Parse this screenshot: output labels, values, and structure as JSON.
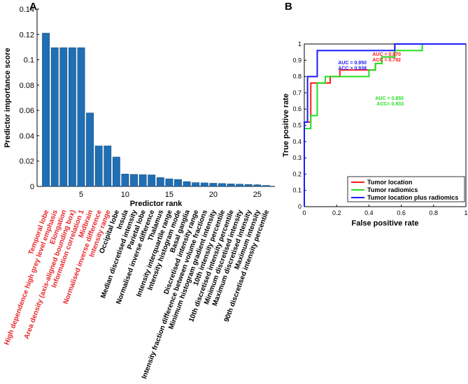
{
  "chart_data": [
    {
      "panel": "A",
      "type": "bar",
      "xlabel": "Predictor rank",
      "ylabel": "Predictor importance score",
      "ylim": [
        0,
        0.14
      ],
      "xlim": [
        0,
        27
      ],
      "yticks": [
        "0",
        "0.02",
        "0.04",
        "0.06",
        "0.08",
        "0.1",
        "0.12",
        "0.14"
      ],
      "xticks": [
        "5",
        "10",
        "15",
        "20",
        "25"
      ],
      "bar_color": "#1f6fb4",
      "categories": [
        "Temporal lobe",
        "High dependence high grey level emphasis",
        "Elongation",
        "Area density (axis-aligned bounding box)",
        "Information correlation 1",
        "Midbrain",
        "Normalised inverse difference",
        "Intensity range",
        "Occipital lobe",
        "Insula",
        "Median discretised intensity",
        "Parietal lobe",
        "Normalised inverse difference",
        "Thalamus",
        "Intensity interquartile range",
        "Intensity histogram mode",
        "Basal ganglia",
        "Discretised intensity range",
        "Intensity fraction difference between volume fractions",
        "Minimum histogram gradient intensity",
        "10th intensity percentile",
        "10th discretised intensity percentile",
        "Minimum discretised intensity",
        "Maximum discretised intensity",
        "Maximum intensity",
        "90th discretised intensity percentile"
      ],
      "label_colors": [
        "#e8262b",
        "#e8262b",
        "#e8262b",
        "#e8262b",
        "#e8262b",
        "#e8262b",
        "#e8262b",
        "#e8262b",
        "#000000",
        "#000000",
        "#000000",
        "#000000",
        "#000000",
        "#000000",
        "#000000",
        "#000000",
        "#000000",
        "#000000",
        "#000000",
        "#000000",
        "#000000",
        "#000000",
        "#000000",
        "#000000",
        "#000000",
        "#000000"
      ],
      "values": [
        0.121,
        0.1095,
        0.1095,
        0.1095,
        0.1095,
        0.058,
        0.032,
        0.032,
        0.0232,
        0.0098,
        0.0095,
        0.0093,
        0.0091,
        0.007,
        0.006,
        0.0055,
        0.0038,
        0.003,
        0.0028,
        0.0025,
        0.0023,
        0.002,
        0.0018,
        0.0016,
        0.0013,
        0.0008
      ]
    },
    {
      "panel": "B",
      "type": "line",
      "xlabel": "False positive rate",
      "ylabel": "True positive rate",
      "xlim": [
        0,
        1
      ],
      "ylim": [
        0,
        1
      ],
      "xticks": [
        "0",
        "0.2",
        "0.4",
        "0.6",
        "0.8",
        "1"
      ],
      "yticks": [
        "0",
        "0.1",
        "0.2",
        "0.3",
        "0.4",
        "0.5",
        "0.6",
        "0.7",
        "0.8",
        "0.9",
        "1"
      ],
      "legend_position": "bottom-right",
      "series": [
        {
          "name": "Tumor location",
          "color": "#ff1a1a",
          "x": [
            0,
            0,
            0.04,
            0.04,
            0.16,
            0.16,
            0.22,
            0.22,
            0.44,
            0.44,
            0.48,
            0.48,
            0.56,
            0.56,
            1
          ],
          "y": [
            0,
            0.52,
            0.52,
            0.76,
            0.76,
            0.8,
            0.8,
            0.84,
            0.84,
            0.88,
            0.88,
            0.92,
            0.92,
            1,
            1
          ],
          "annotation": [
            "AUC = 0.870",
            "ACC = 0.792"
          ]
        },
        {
          "name": "Tumor radiomics",
          "color": "#22e022",
          "x": [
            0,
            0,
            0.04,
            0.04,
            0.08,
            0.08,
            0.13,
            0.13,
            0.4,
            0.4,
            0.44,
            0.44,
            0.48,
            0.48,
            0.56,
            0.56,
            0.73,
            0.73,
            1
          ],
          "y": [
            0,
            0.48,
            0.48,
            0.56,
            0.56,
            0.76,
            0.76,
            0.8,
            0.8,
            0.84,
            0.84,
            0.88,
            0.88,
            0.92,
            0.92,
            0.96,
            0.96,
            1,
            1
          ],
          "annotation": [
            "AUC = 0.855",
            "ACC= 0.833"
          ]
        },
        {
          "name": "Tumor location plus radiomics",
          "color": "#1a1aff",
          "x": [
            0,
            0,
            0.02,
            0.02,
            0.04,
            0.04,
            0.08,
            0.08,
            0.56,
            0.56,
            1
          ],
          "y": [
            0,
            0.52,
            0.52,
            0.8,
            0.8,
            0.8,
            0.8,
            0.96,
            0.96,
            1,
            1
          ],
          "annotation": [
            "AUC = 0.950",
            "ACC = 0.938"
          ]
        }
      ]
    }
  ]
}
